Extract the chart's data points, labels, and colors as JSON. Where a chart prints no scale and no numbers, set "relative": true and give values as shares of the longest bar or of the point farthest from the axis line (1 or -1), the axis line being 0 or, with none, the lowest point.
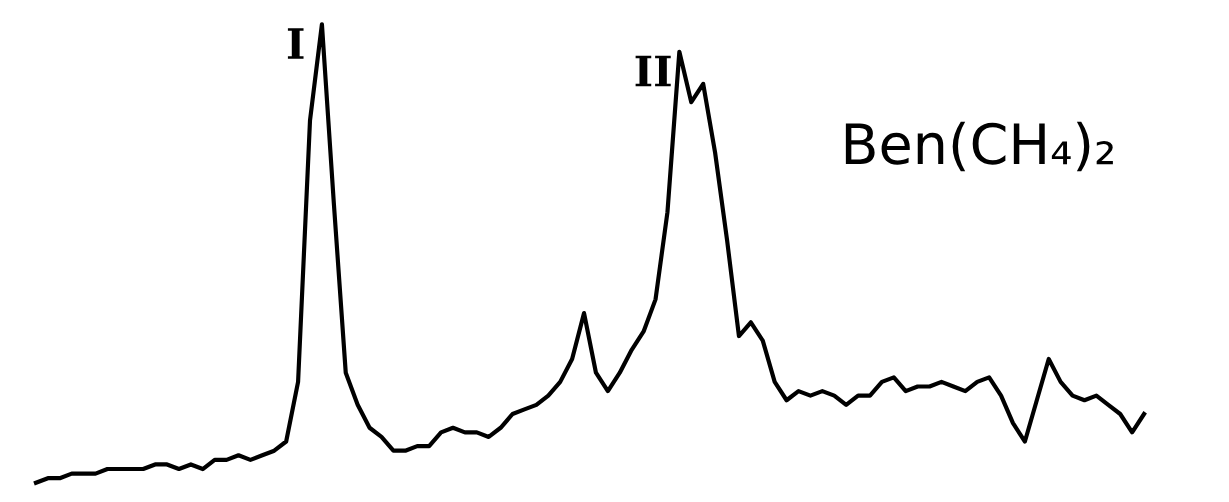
{
  "chart_data": {
    "type": "line",
    "relative": true,
    "categories": [
      null,
      null,
      null,
      null,
      null,
      null,
      null,
      null,
      null,
      null,
      null,
      null,
      null,
      null,
      null,
      null,
      null,
      null,
      null,
      null,
      null,
      null,
      null,
      null,
      null,
      null,
      null,
      null,
      null,
      null,
      null,
      null,
      null,
      null,
      null,
      null,
      null,
      null,
      null,
      null,
      null,
      null,
      null,
      null,
      null,
      null,
      null,
      null,
      null,
      null,
      null,
      null,
      null,
      null,
      null,
      null,
      null,
      null,
      null,
      null,
      null,
      null,
      null,
      null,
      null,
      null,
      null,
      null,
      null,
      null,
      null,
      null,
      null,
      null,
      null,
      null,
      null,
      null,
      null,
      null,
      null,
      null,
      null,
      null,
      null,
      null,
      null,
      null,
      null,
      null,
      null,
      null,
      null,
      null
    ],
    "series": [
      {
        "name": "Ben(CH₄)₂",
        "color": "#000000",
        "values": [
          0,
          0.01,
          0.01,
          0.02,
          0.02,
          0.02,
          0.03,
          0.03,
          0.03,
          0.03,
          0.04,
          0.04,
          0.03,
          0.04,
          0.03,
          0.05,
          0.05,
          0.06,
          0.05,
          0.06,
          0.07,
          0.09,
          0.22,
          0.79,
          1,
          0.61,
          0.24,
          0.17,
          0.12,
          0.1,
          0.07,
          0.07,
          0.08,
          0.08,
          0.11,
          0.12,
          0.11,
          0.11,
          0.1,
          0.12,
          0.15,
          0.16,
          0.17,
          0.19,
          0.22,
          0.27,
          0.37,
          0.24,
          0.2,
          0.24,
          0.29,
          0.33,
          0.4,
          0.59,
          0.94,
          0.83,
          0.87,
          0.72,
          0.53,
          0.32,
          0.35,
          0.31,
          0.22,
          0.18,
          0.2,
          0.19,
          0.2,
          0.19,
          0.17,
          0.19,
          0.19,
          0.22,
          0.23,
          0.2,
          0.21,
          0.21,
          0.22,
          0.21,
          0.2,
          0.22,
          0.23,
          0.19,
          0.13,
          0.09,
          0.18,
          0.27,
          0.22,
          0.19,
          0.18,
          0.19,
          0.17,
          0.15,
          0.11,
          0.15
        ]
      }
    ],
    "annotations": [
      "I",
      "II"
    ]
  }
}
